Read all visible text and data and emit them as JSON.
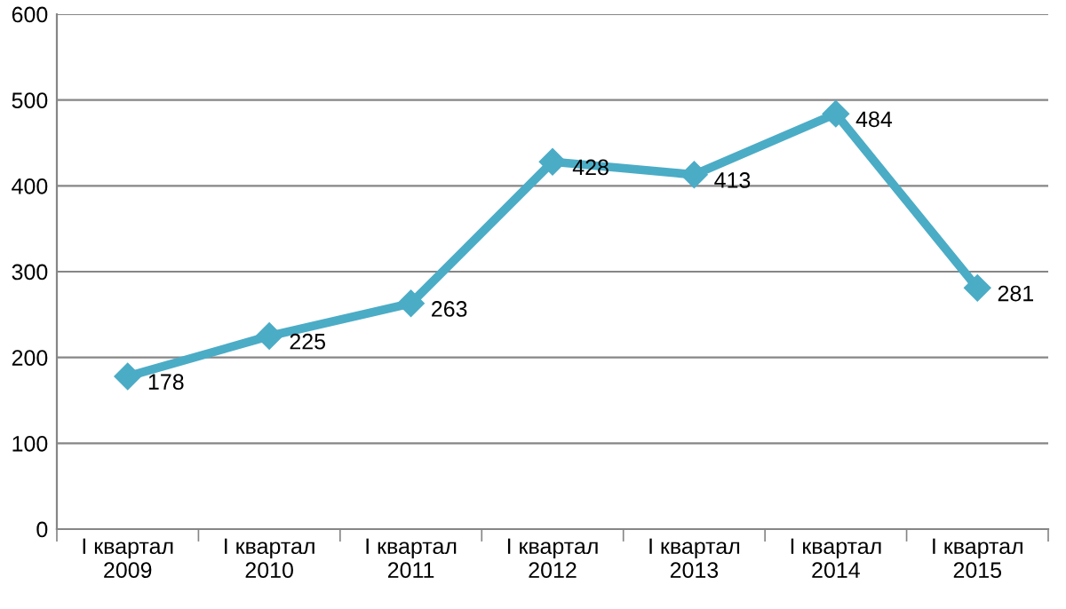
{
  "chart_data": {
    "type": "line",
    "categories": [
      "I квартал\n2009",
      "I квартал\n2010",
      "I квартал\n2011",
      "I квартал\n2012",
      "I квартал\n2013",
      "I квартал\n2014",
      "I квартал\n2015"
    ],
    "series": [
      {
        "color": "#4bacc6",
        "values": [
          178,
          225,
          263,
          428,
          413,
          484,
          281
        ]
      }
    ],
    "ylim": [
      0,
      600
    ],
    "yticks": [
      0,
      100,
      200,
      300,
      400,
      500,
      600
    ],
    "grid": "y",
    "marker": "diamond",
    "line_style": "solid",
    "data_labels": true,
    "legend": false
  }
}
